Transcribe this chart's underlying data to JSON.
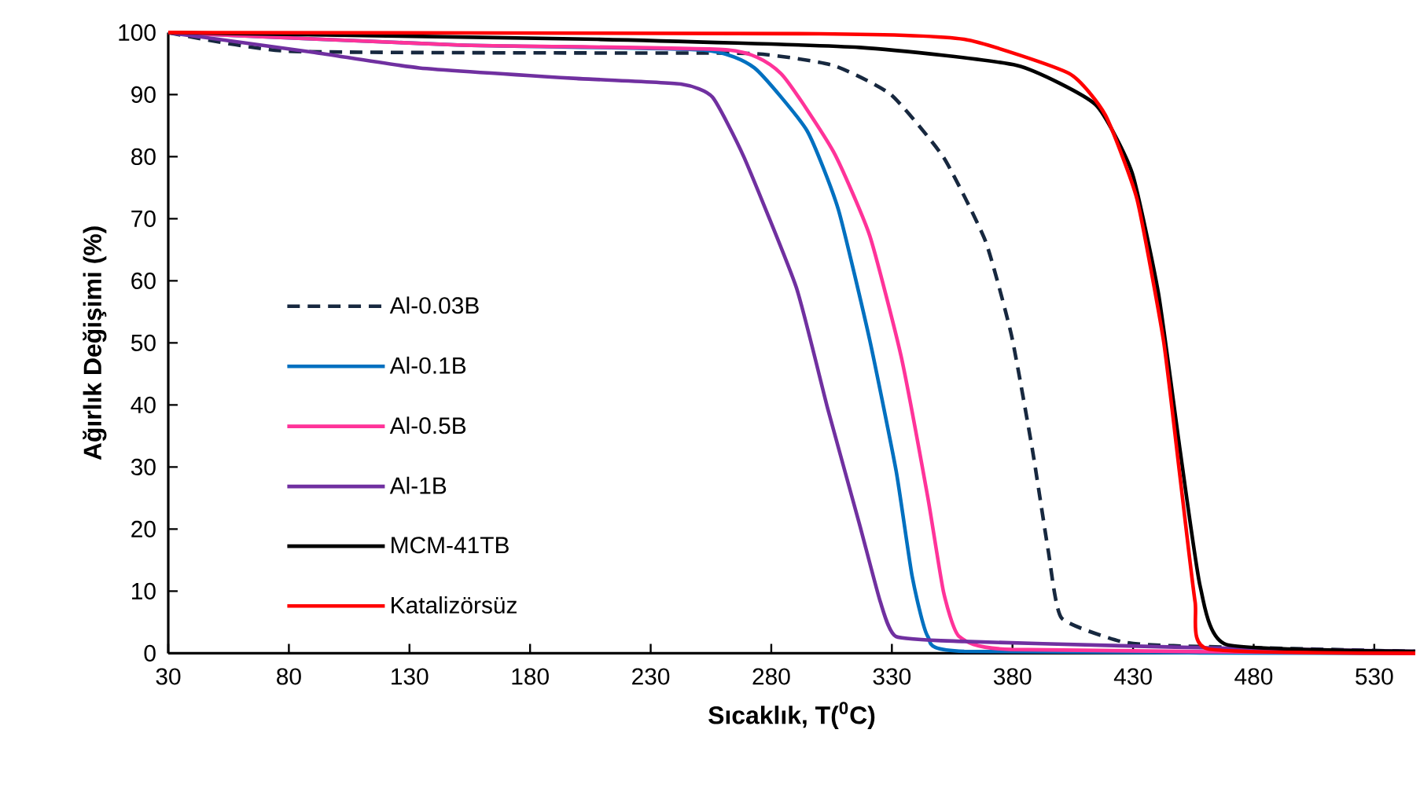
{
  "chart_data": {
    "type": "line",
    "xlabel": "Sıcaklık, T($^{0}$C)",
    "ylabel": "Ağırlık Değişimi (%)",
    "xlim": [
      30,
      547
    ],
    "ylim": [
      0,
      100
    ],
    "xticks": [
      30,
      80,
      130,
      180,
      230,
      280,
      330,
      380,
      430,
      480,
      530
    ],
    "yticks": [
      0,
      10,
      20,
      30,
      40,
      50,
      60,
      70,
      80,
      90,
      100
    ],
    "grid": false,
    "legend": "left",
    "series": [
      {
        "name": "Al-0.03B",
        "color": "#17283f",
        "line_style": "dashed",
        "x": [
          30,
          79.5,
          208,
          273,
          305.7,
          329.6,
          351.4,
          368.8,
          379.6,
          388.3,
          394.8,
          400.3,
          425,
          446.8,
          547
        ],
        "values": [
          100,
          97,
          96.7,
          96.6,
          94.7,
          90,
          79.9,
          66.4,
          51.2,
          32.7,
          16.6,
          5.7,
          1.9,
          1.2,
          0.3
        ]
      },
      {
        "name": "Al-0.1B",
        "color": "#0070c0",
        "line_style": "solid",
        "x": [
          30,
          150,
          251.4,
          273,
          294.8,
          307.8,
          320.8,
          331.8,
          338.4,
          344.9,
          360,
          547
        ],
        "values": [
          100,
          98,
          97.2,
          94.3,
          84.2,
          71.5,
          50.5,
          29.3,
          12.4,
          2.7,
          0.3,
          0
        ]
      },
      {
        "name": "Al-0.5B",
        "color": "#ff3399",
        "line_style": "solid",
        "x": [
          30,
          150,
          262,
          284,
          305.8,
          320.8,
          333.8,
          344.9,
          351.4,
          357.9,
          379.6,
          547
        ],
        "values": [
          100,
          98,
          97.2,
          93.4,
          80.8,
          67.3,
          47.9,
          25.1,
          9.9,
          2.7,
          0.6,
          0
        ]
      },
      {
        "name": "Al-1B",
        "color": "#7030a0",
        "line_style": "solid",
        "x": [
          30,
          90.6,
          134.1,
          199.3,
          242.6,
          255.6,
          268.7,
          290.4,
          303.4,
          316.5,
          325.2,
          331.7,
          360,
          425,
          468.7,
          547
        ],
        "values": [
          100,
          96.8,
          94.3,
          92.6,
          91.7,
          89.6,
          79.9,
          58.9,
          39.4,
          20.9,
          8.3,
          2.7,
          1.9,
          1.2,
          0.8,
          0.3
        ]
      },
      {
        "name": "MCM-41TB",
        "color": "#000000",
        "line_style": "solid",
        "x": [
          30,
          208,
          316.7,
          381.8,
          414.4,
          429.6,
          440.5,
          449.2,
          457.8,
          468.7,
          547
        ],
        "values": [
          100,
          98.9,
          97.6,
          94.7,
          88.4,
          77.4,
          58,
          33.5,
          10.8,
          1.4,
          0.3
        ]
      },
      {
        "name": "Katalizörsüz",
        "color": "#ff0000",
        "line_style": "solid",
        "x": [
          30,
          300,
          360,
          403.5,
          418.5,
          431.6,
          442.6,
          449.2,
          455.7,
          461,
          547
        ],
        "values": [
          100,
          99.8,
          98.9,
          93.4,
          86.7,
          73.2,
          50.4,
          29.3,
          8.3,
          0.7,
          0
        ]
      }
    ]
  }
}
